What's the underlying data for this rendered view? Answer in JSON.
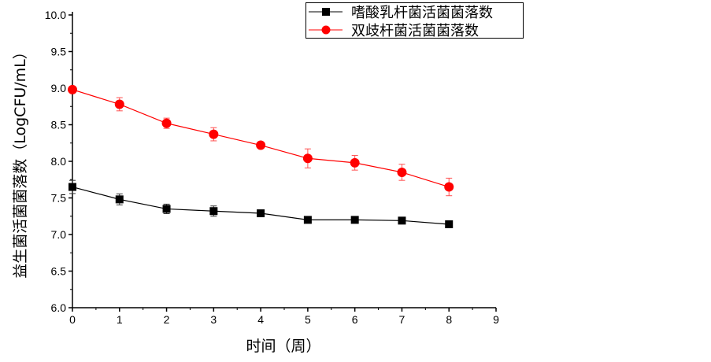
{
  "chart_data": {
    "type": "line",
    "title": "",
    "xlabel": "时间（周）",
    "ylabel": "益生菌活菌菌落数（LogCFU/mL）",
    "xlim": [
      0,
      9
    ],
    "ylim": [
      6.0,
      10.0
    ],
    "xticks": [
      "0",
      "1",
      "2",
      "3",
      "4",
      "5",
      "6",
      "7",
      "8",
      "9"
    ],
    "yticks": [
      "6.0",
      "6.5",
      "7.0",
      "7.5",
      "8.0",
      "8.5",
      "9.0",
      "9.5",
      "10.0"
    ],
    "grid": false,
    "legend_position": "top-right",
    "x": [
      0,
      1,
      2,
      3,
      4,
      5,
      6,
      7,
      8
    ],
    "series": [
      {
        "name": "嗜酸乳杆菌活菌菌落数",
        "color": "#000000",
        "marker": "square",
        "values": [
          7.65,
          7.48,
          7.35,
          7.32,
          7.29,
          7.2,
          7.2,
          7.19,
          7.14
        ],
        "errors": [
          0.09,
          0.075,
          0.065,
          0.07,
          0.02,
          0.02,
          0.02,
          0.02,
          0.02
        ]
      },
      {
        "name": "双歧杆菌活菌菌落数",
        "color": "#ff0000",
        "marker": "circle",
        "values": [
          8.98,
          8.78,
          8.52,
          8.37,
          8.22,
          8.04,
          7.98,
          7.85,
          7.65
        ],
        "errors": [
          0.02,
          0.09,
          0.07,
          0.09,
          0.02,
          0.13,
          0.1,
          0.11,
          0.12
        ]
      }
    ]
  }
}
